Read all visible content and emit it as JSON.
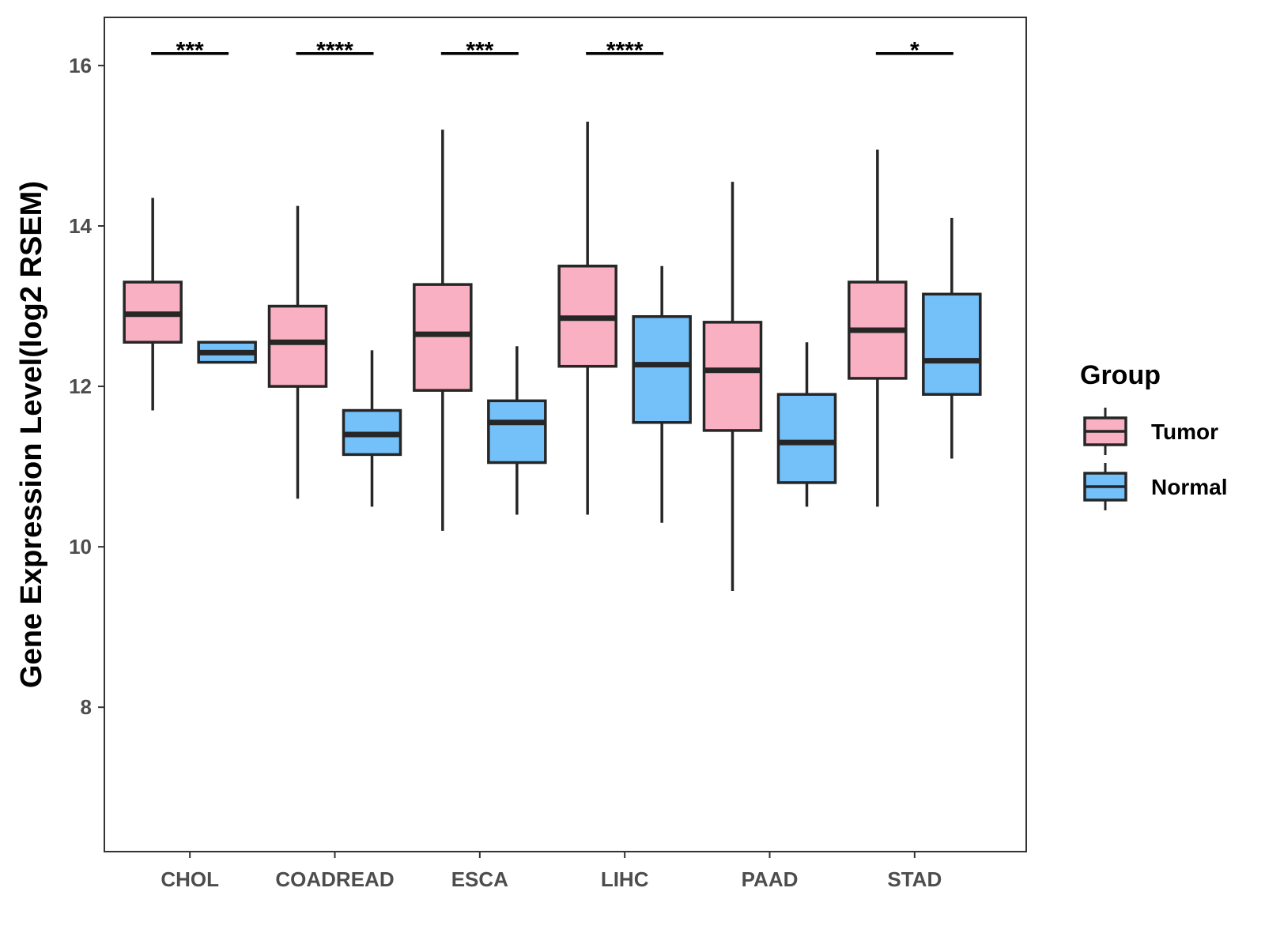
{
  "chart_data": {
    "type": "boxplot",
    "title": "",
    "xlabel": "",
    "ylabel": "Gene Expression Level(log2 RSEM)",
    "ylim": [
      6.2,
      16.6
    ],
    "yticks": [
      8,
      10,
      12,
      14,
      16
    ],
    "categories": [
      "CHOL",
      "COADREAD",
      "ESCA",
      "LIHC",
      "PAAD",
      "STAD"
    ],
    "legend": {
      "title": "Group",
      "position": "right",
      "entries": [
        "Tumor",
        "Normal"
      ]
    },
    "series": [
      {
        "name": "Tumor",
        "color": "#FAB0C3",
        "boxes": [
          {
            "min": 11.7,
            "q1": 12.55,
            "median": 12.9,
            "q3": 13.3,
            "max": 14.35
          },
          {
            "min": 10.6,
            "q1": 12.0,
            "median": 12.55,
            "q3": 13.0,
            "max": 14.25
          },
          {
            "min": 10.2,
            "q1": 11.95,
            "median": 12.65,
            "q3": 13.27,
            "max": 15.2
          },
          {
            "min": 10.4,
            "q1": 12.25,
            "median": 12.85,
            "q3": 13.5,
            "max": 15.3
          },
          {
            "min": 9.45,
            "q1": 11.45,
            "median": 12.2,
            "q3": 12.8,
            "max": 14.55
          },
          {
            "min": 10.5,
            "q1": 12.1,
            "median": 12.7,
            "q3": 13.3,
            "max": 14.95
          }
        ]
      },
      {
        "name": "Normal",
        "color": "#74C0F8",
        "boxes": [
          {
            "min": 12.3,
            "q1": 12.3,
            "median": 12.42,
            "q3": 12.55,
            "max": 12.55
          },
          {
            "min": 10.5,
            "q1": 11.15,
            "median": 11.4,
            "q3": 11.7,
            "max": 12.45
          },
          {
            "min": 10.4,
            "q1": 11.05,
            "median": 11.55,
            "q3": 11.82,
            "max": 12.5
          },
          {
            "min": 10.3,
            "q1": 11.55,
            "median": 12.27,
            "q3": 12.87,
            "max": 13.5
          },
          {
            "min": 10.5,
            "q1": 10.8,
            "median": 11.3,
            "q3": 11.9,
            "max": 12.55
          },
          {
            "min": 11.1,
            "q1": 11.9,
            "median": 12.32,
            "q3": 13.15,
            "max": 14.1
          }
        ]
      }
    ],
    "significance": [
      {
        "category": "CHOL",
        "label": "***"
      },
      {
        "category": "COADREAD",
        "label": "****"
      },
      {
        "category": "ESCA",
        "label": "***"
      },
      {
        "category": "LIHC",
        "label": "****"
      },
      {
        "category": "STAD",
        "label": "*"
      }
    ],
    "significance_level": 16.15
  }
}
